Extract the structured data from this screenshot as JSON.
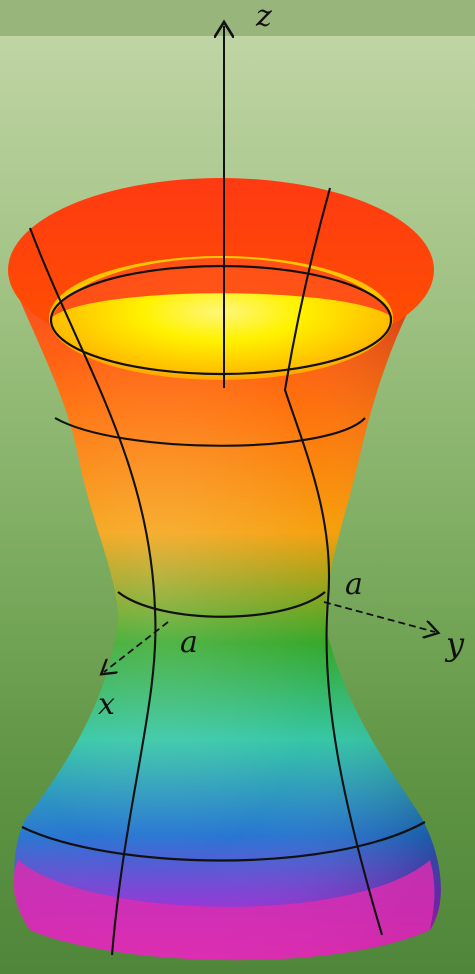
{
  "diagram": {
    "axis_labels": {
      "z": "z",
      "x": "x",
      "y": "y"
    },
    "parameter_labels": {
      "a_x": "a",
      "a_y": "a"
    },
    "colors": {
      "top": "#ff3a12",
      "inner": "#fff200",
      "middle": "#23a21f",
      "lower": "#1d6fd0",
      "bottom": "#ff1fb3",
      "grid": "#111111"
    }
  }
}
